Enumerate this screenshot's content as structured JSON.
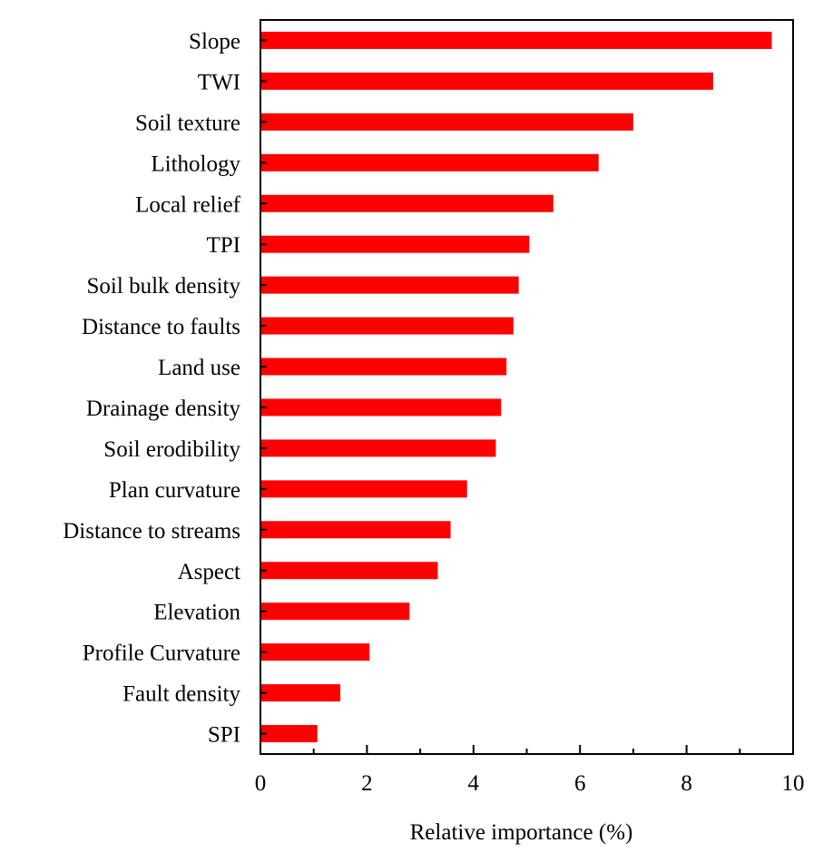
{
  "chart_data": {
    "type": "bar",
    "orientation": "horizontal",
    "title": "",
    "xlabel": "Relative importance (%)",
    "ylabel": "",
    "xlim": [
      0,
      10
    ],
    "xticks": [
      0,
      2,
      4,
      6,
      8,
      10
    ],
    "grid": false,
    "bar_color": "#ff0000",
    "categories": [
      "Slope",
      "TWI",
      "Soil texture",
      "Lithology",
      "Local relief",
      "TPI",
      "Soil bulk density",
      "Distance to faults",
      "Land use",
      "Drainage density",
      "Soil erodibility",
      "Plan curvature",
      "Distance to streams",
      "Aspect",
      "Elevation",
      "Profile Curvature",
      "Fault density",
      "SPI"
    ],
    "values": [
      9.6,
      8.5,
      7.0,
      6.35,
      5.5,
      5.05,
      4.85,
      4.75,
      4.62,
      4.52,
      4.42,
      3.88,
      3.57,
      3.33,
      2.8,
      2.05,
      1.5,
      1.07
    ]
  }
}
